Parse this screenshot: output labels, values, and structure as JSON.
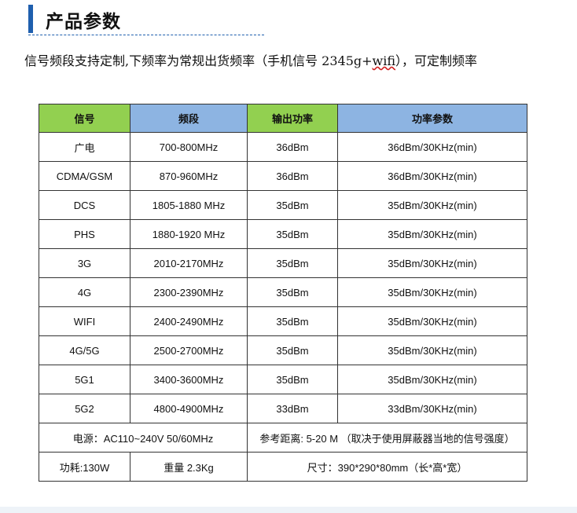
{
  "header": {
    "title": "产品参数"
  },
  "intro": {
    "before": "信号频段支持定制,下频率为常规出货频率（手机信号 2345g+",
    "underlined": "wifi",
    "after": "），可定制频率"
  },
  "table": {
    "columns": [
      "信号",
      "频段",
      "输出功率",
      "功率参数"
    ],
    "rows": [
      {
        "signal": "广电",
        "band": "700-800MHz",
        "output": "36dBm",
        "param": "36dBm/30KHz(min)"
      },
      {
        "signal": "CDMA/GSM",
        "band": "870-960MHz",
        "output": "36dBm",
        "param": "36dBm/30KHz(min)"
      },
      {
        "signal": "DCS",
        "band": "1805-1880 MHz",
        "output": "35dBm",
        "param": "35dBm/30KHz(min)"
      },
      {
        "signal": "PHS",
        "band": "1880-1920 MHz",
        "output": "35dBm",
        "param": "35dBm/30KHz(min)"
      },
      {
        "signal": "3G",
        "band": "2010-2170MHz",
        "output": "35dBm",
        "param": "35dBm/30KHz(min)"
      },
      {
        "signal": "4G",
        "band": "2300-2390MHz",
        "output": "35dBm",
        "param": "35dBm/30KHz(min)"
      },
      {
        "signal": "WIFI",
        "band": "2400-2490MHz",
        "output": "35dBm",
        "param": "35dBm/30KHz(min)"
      },
      {
        "signal": "4G/5G",
        "band": "2500-2700MHz",
        "output": "35dBm",
        "param": "35dBm/30KHz(min)"
      },
      {
        "signal": "5G1",
        "band": "3400-3600MHz",
        "output": "35dBm",
        "param": "35dBm/30KHz(min)"
      },
      {
        "signal": "5G2",
        "band": "4800-4900MHz",
        "output": "33dBm",
        "param": "33dBm/30KHz(min)"
      }
    ],
    "footer": {
      "power_supply": "电源：AC110~240V 50/60MHz",
      "range": "参考距离: 5-20 M （取决于使用屏蔽器当地的信号强度）",
      "consumption": "功耗:130W",
      "weight": "重量 2.3Kg",
      "size": "尺寸：390*290*80mm（长*高*宽）"
    }
  },
  "colors": {
    "heading_accent": "#1f5fae",
    "header_green": "#92d050",
    "header_blue": "#8db4e2"
  }
}
